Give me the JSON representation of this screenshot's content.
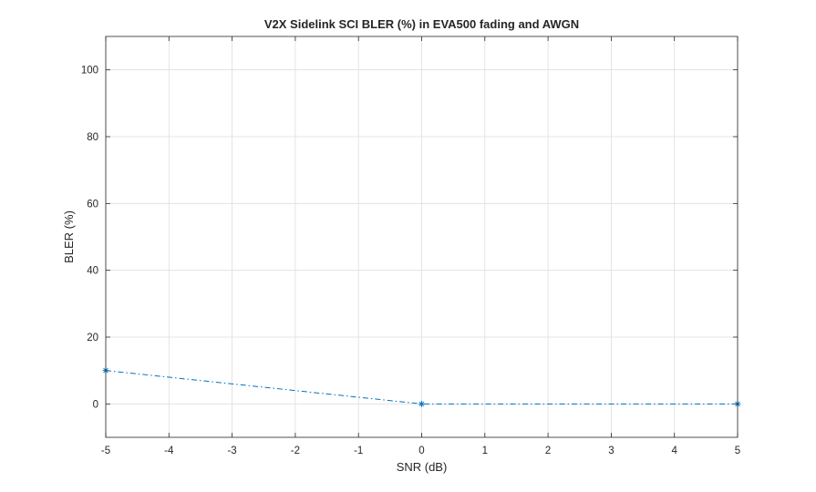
{
  "chart_data": {
    "type": "line",
    "title": "V2X Sidelink SCI BLER (%) in EVA500 fading and AWGN",
    "xlabel": "SNR (dB)",
    "ylabel": "BLER (%)",
    "xlim": [
      -5,
      5
    ],
    "ylim": [
      -10,
      110
    ],
    "xticks": [
      -5,
      -4,
      -3,
      -2,
      -1,
      0,
      1,
      2,
      3,
      4,
      5
    ],
    "yticks": [
      0,
      20,
      40,
      60,
      80,
      100
    ],
    "grid": true,
    "line_style": "dash-dot",
    "marker": "asterisk",
    "series": [
      {
        "color": "#0072bd",
        "x": [
          -5,
          0,
          5
        ],
        "y": [
          10,
          0,
          0
        ]
      }
    ]
  }
}
